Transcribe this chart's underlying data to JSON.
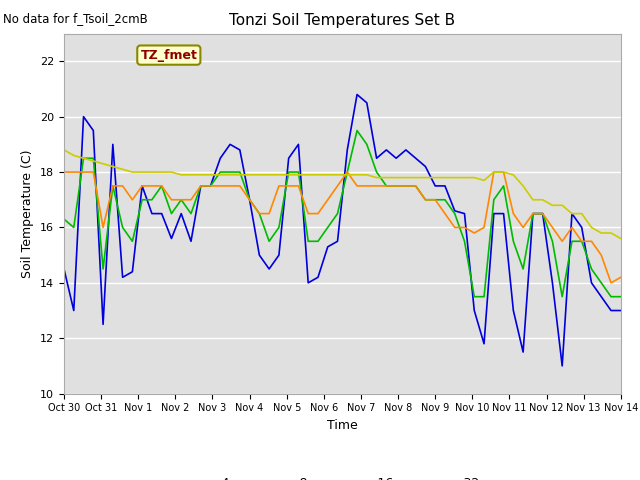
{
  "title": "Tonzi Soil Temperatures Set B",
  "xlabel": "Time",
  "ylabel": "Soil Temperature (C)",
  "no_data_label": "No data for f_Tsoil_2cmB",
  "tz_fmet_label": "TZ_fmet",
  "ylim": [
    10,
    23
  ],
  "yticks": [
    10,
    12,
    14,
    16,
    18,
    20,
    22
  ],
  "bg_color": "#e0e0e0",
  "line_colors": {
    "-4cm": "#0000dd",
    "-8cm": "#00bb00",
    "-16cm": "#ff8800",
    "-32cm": "#cccc00"
  },
  "x_labels": [
    "Oct 30",
    "Oct 31",
    "Nov 1",
    "Nov 2",
    "Nov 3",
    "Nov 4",
    "Nov 5",
    "Nov 6",
    "Nov 7",
    "Nov 8",
    "Nov 9",
    "Nov 10",
    "Nov 11",
    "Nov 12",
    "Nov 13",
    "Nov 14"
  ],
  "series_4cm": [
    14.5,
    13.0,
    20.0,
    19.5,
    12.5,
    19.0,
    14.2,
    14.4,
    17.5,
    16.5,
    16.5,
    15.6,
    16.5,
    15.5,
    17.5,
    17.5,
    18.5,
    19.0,
    18.8,
    17.0,
    15.0,
    14.5,
    15.0,
    18.5,
    19.0,
    14.0,
    14.2,
    15.3,
    15.5,
    18.8,
    20.8,
    20.5,
    18.5,
    18.8,
    18.5,
    18.8,
    18.5,
    18.2,
    17.5,
    17.5,
    16.6,
    16.5,
    13.0,
    11.8,
    16.5,
    16.5,
    13.0,
    11.5,
    16.5,
    16.5,
    14.0,
    11.0,
    16.5,
    16.0,
    14.0,
    13.5,
    13.0,
    13.0
  ],
  "series_8cm": [
    16.3,
    16.0,
    18.5,
    18.5,
    14.5,
    17.5,
    16.0,
    15.5,
    17.0,
    17.0,
    17.5,
    16.5,
    17.0,
    16.5,
    17.5,
    17.5,
    18.0,
    18.0,
    18.0,
    17.0,
    16.5,
    15.5,
    16.0,
    18.0,
    18.0,
    15.5,
    15.5,
    16.0,
    16.5,
    18.0,
    19.5,
    19.0,
    18.0,
    17.5,
    17.5,
    17.5,
    17.5,
    17.0,
    17.0,
    17.0,
    16.5,
    15.5,
    13.5,
    13.5,
    17.0,
    17.5,
    15.5,
    14.5,
    16.5,
    16.5,
    15.5,
    13.5,
    15.5,
    15.5,
    14.5,
    14.0,
    13.5,
    13.5
  ],
  "series_16cm": [
    18.0,
    18.0,
    18.0,
    18.0,
    16.0,
    17.5,
    17.5,
    17.0,
    17.5,
    17.5,
    17.5,
    17.0,
    17.0,
    17.0,
    17.5,
    17.5,
    17.5,
    17.5,
    17.5,
    17.0,
    16.5,
    16.5,
    17.5,
    17.5,
    17.5,
    16.5,
    16.5,
    17.0,
    17.5,
    18.0,
    17.5,
    17.5,
    17.5,
    17.5,
    17.5,
    17.5,
    17.5,
    17.0,
    17.0,
    16.5,
    16.0,
    16.0,
    15.8,
    16.0,
    18.0,
    18.0,
    16.5,
    16.0,
    16.5,
    16.5,
    16.0,
    15.5,
    16.0,
    15.5,
    15.5,
    15.0,
    14.0,
    14.2
  ],
  "series_32cm": [
    18.8,
    18.6,
    18.5,
    18.4,
    18.3,
    18.2,
    18.1,
    18.0,
    18.0,
    18.0,
    18.0,
    18.0,
    17.9,
    17.9,
    17.9,
    17.9,
    17.9,
    17.9,
    17.9,
    17.9,
    17.9,
    17.9,
    17.9,
    17.9,
    17.9,
    17.9,
    17.9,
    17.9,
    17.9,
    17.9,
    17.9,
    17.9,
    17.8,
    17.8,
    17.8,
    17.8,
    17.8,
    17.8,
    17.8,
    17.8,
    17.8,
    17.8,
    17.8,
    17.7,
    18.0,
    18.0,
    17.9,
    17.5,
    17.0,
    17.0,
    16.8,
    16.8,
    16.5,
    16.5,
    16.0,
    15.8,
    15.8,
    15.6
  ]
}
